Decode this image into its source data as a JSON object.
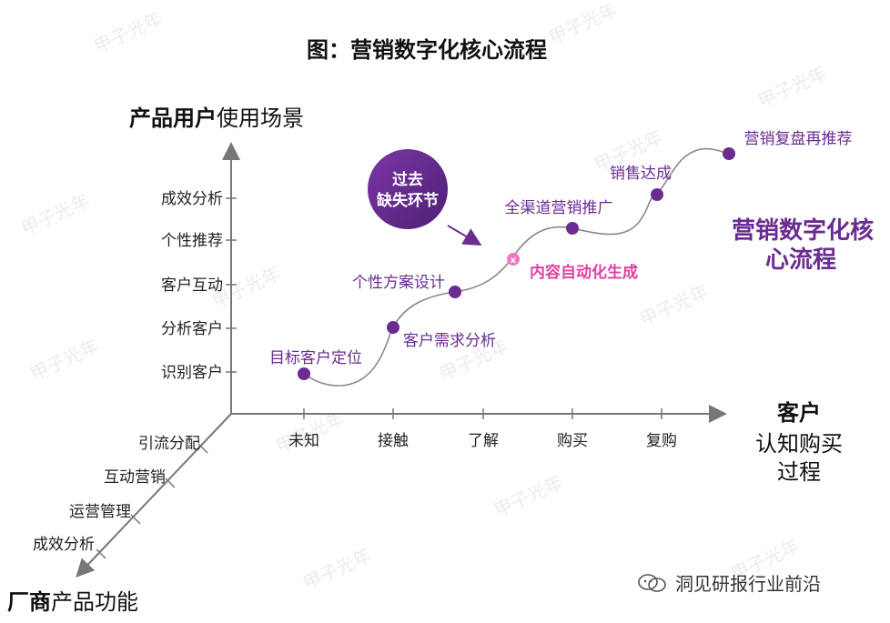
{
  "title": "图：营销数字化核心流程",
  "y_axis": {
    "bold": "产品用户",
    "normal": "使用场景"
  },
  "y_ticks": [
    "成效分析",
    "个性推荐",
    "客户互动",
    "分析客户",
    "识别客户"
  ],
  "x_axis": {
    "line1": "客户",
    "line2": "认知购买",
    "line3": "过程"
  },
  "x_ticks": [
    "未知",
    "接触",
    "了解",
    "购买",
    "复购"
  ],
  "z_axis": {
    "bold": "厂商",
    "normal": "产品功能"
  },
  "z_ticks": [
    "引流分配",
    "互动营销",
    "运营管理",
    "成效分析"
  ],
  "curve_points": [
    {
      "label": "目标客户定位",
      "color": "#6a2c91"
    },
    {
      "label": "客户需求分析",
      "color": "#6a2c91"
    },
    {
      "label": "个性方案设计",
      "color": "#6a2c91"
    },
    {
      "label": "内容自动化生成",
      "color": "#e040a0"
    },
    {
      "label": "全渠道营销推广",
      "color": "#6a2c91"
    },
    {
      "label": "销售达成",
      "color": "#6a2c91"
    },
    {
      "label": "营销复盘再推荐",
      "color": "#6a2c91"
    }
  ],
  "missing_link_badge": {
    "line1": "过去",
    "line2": "缺失环节"
  },
  "core_label": {
    "line1": "营销数字化核",
    "line2": "心流程"
  },
  "watermark": "甲子光年",
  "footer": "洞见研报行业前沿",
  "colors": {
    "purple": "#6a2c91",
    "pink": "#e040a0",
    "axis": "#777777"
  }
}
